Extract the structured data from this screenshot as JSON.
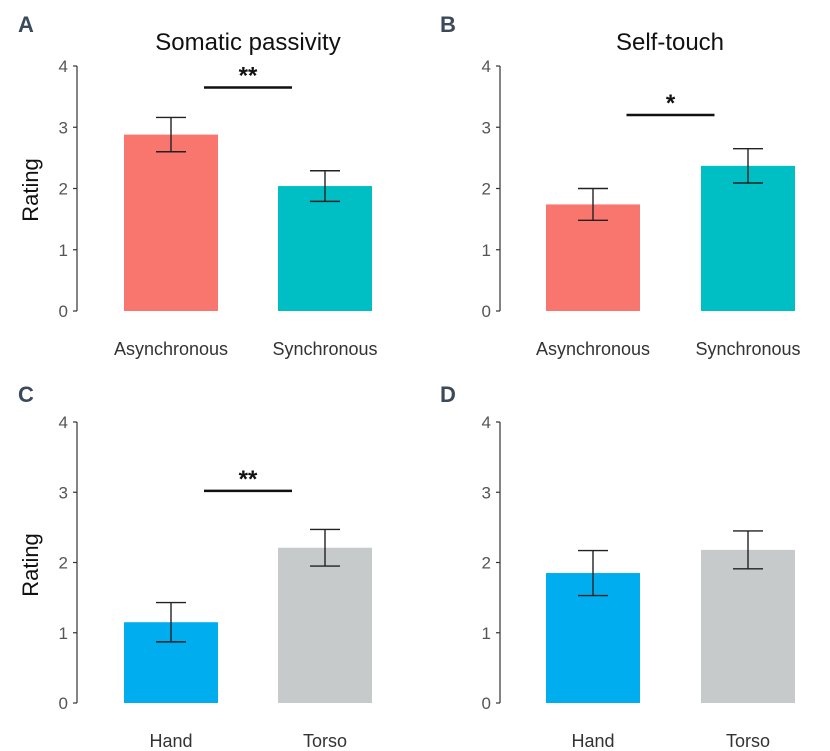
{
  "chart_data": [
    {
      "panel": "A",
      "type": "bar",
      "title": "Somatic passivity",
      "ylabel": "Rating",
      "ylim": [
        0,
        4
      ],
      "yticks": [
        "0",
        "1",
        "2",
        "3",
        "4"
      ],
      "categories": [
        "Asynchronous",
        "Synchronous"
      ],
      "values": [
        2.88,
        2.04
      ],
      "errors": [
        0.28,
        0.25
      ],
      "colors": [
        "#f8766d",
        "#00bfc4"
      ],
      "significance": {
        "label": "**",
        "between": [
          0,
          1
        ]
      }
    },
    {
      "panel": "B",
      "type": "bar",
      "title": "Self-touch",
      "ylabel": "",
      "ylim": [
        0,
        4
      ],
      "yticks": [
        "0",
        "1",
        "2",
        "3",
        "4"
      ],
      "categories": [
        "Asynchronous",
        "Synchronous"
      ],
      "values": [
        1.74,
        2.37
      ],
      "errors": [
        0.26,
        0.28
      ],
      "colors": [
        "#f8766d",
        "#00bfc4"
      ],
      "significance": {
        "label": "*",
        "between": [
          0,
          1
        ]
      }
    },
    {
      "panel": "C",
      "type": "bar",
      "title": "",
      "ylabel": "Rating",
      "ylim": [
        0,
        4
      ],
      "yticks": [
        "0",
        "1",
        "2",
        "3",
        "4"
      ],
      "categories": [
        "Hand",
        "Torso"
      ],
      "values": [
        1.15,
        2.21
      ],
      "errors": [
        0.28,
        0.26
      ],
      "colors": [
        "#00aeef",
        "#c6cacb"
      ],
      "significance": {
        "label": "**",
        "between": [
          0,
          1
        ]
      }
    },
    {
      "panel": "D",
      "type": "bar",
      "title": "",
      "ylabel": "",
      "ylim": [
        0,
        4
      ],
      "yticks": [
        "0",
        "1",
        "2",
        "3",
        "4"
      ],
      "categories": [
        "Hand",
        "Torso"
      ],
      "values": [
        1.85,
        2.18
      ],
      "errors": [
        0.32,
        0.27
      ],
      "colors": [
        "#00aeef",
        "#c6cacb"
      ],
      "significance": null
    }
  ]
}
